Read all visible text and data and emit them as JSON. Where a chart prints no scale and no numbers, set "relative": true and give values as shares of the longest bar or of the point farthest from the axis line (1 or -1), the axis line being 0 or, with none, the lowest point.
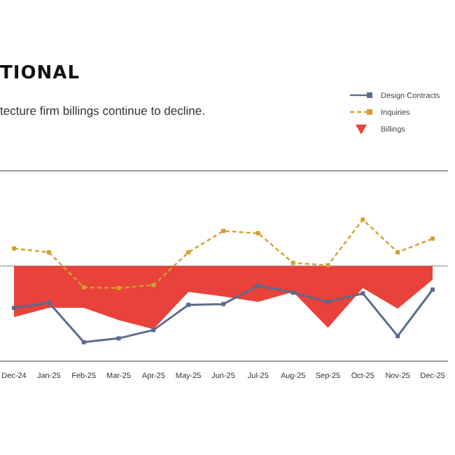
{
  "chart_data": {
    "type": "line",
    "title": "TIONAL",
    "subtitle": "tecture firm billings continue to decline.",
    "relative": true,
    "legend": "top right",
    "categories": [
      "Dec-24",
      "Jan-25",
      "Feb-25",
      "Mar-25",
      "Apr-25",
      "May-25",
      "Jun-25",
      "Jul-25",
      "Aug-25",
      "Sep-25",
      "Oct-25",
      "Nov-25",
      "Dec-25"
    ],
    "series": [
      {
        "name": "Design Contracts",
        "color": "#5b6b8c",
        "marker": "square",
        "line_style": "solid",
        "values": [
          -0.55,
          -0.48,
          -1,
          -0.95,
          -0.84,
          -0.51,
          -0.5,
          -0.26,
          -0.35,
          -0.47,
          -0.36,
          -0.92,
          -0.31
        ]
      },
      {
        "name": "Inquiries",
        "color": "#d4a02c",
        "marker": "square",
        "line_style": "dashed",
        "values": [
          0.23,
          0.18,
          -0.28,
          -0.29,
          -0.25,
          0.18,
          0.46,
          0.43,
          0.04,
          0.01,
          0.61,
          0.18,
          0.36
        ]
      },
      {
        "name": "Billings",
        "type": "area",
        "color": "#e8423a",
        "values": [
          -0.67,
          -0.55,
          -0.55,
          -0.71,
          -0.83,
          -0.34,
          -0.4,
          -0.47,
          -0.34,
          -0.81,
          -0.29,
          -0.56,
          -0.18
        ]
      }
    ]
  }
}
